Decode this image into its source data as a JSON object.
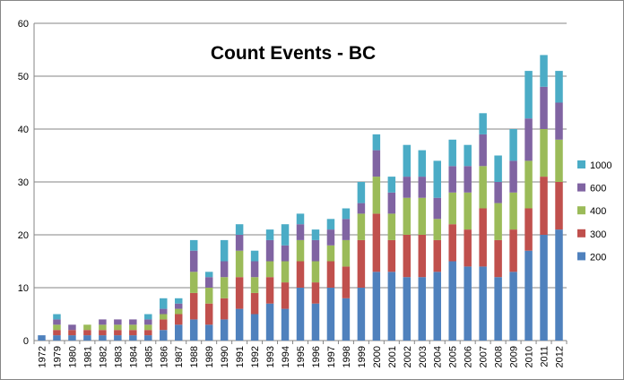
{
  "chart_data": {
    "type": "bar",
    "stacked": true,
    "title": "Count Events - BC",
    "xlabel": "",
    "ylabel": "",
    "ylim": [
      0,
      60
    ],
    "yticks": [
      0,
      10,
      20,
      30,
      40,
      50,
      60
    ],
    "grid": "horizontal",
    "legend_position": "right",
    "categories": [
      "1972",
      "1979",
      "1980",
      "1981",
      "1982",
      "1983",
      "1984",
      "1985",
      "1986",
      "1987",
      "1988",
      "1989",
      "1990",
      "1991",
      "1992",
      "1993",
      "1994",
      "1995",
      "1996",
      "1997",
      "1998",
      "1999",
      "2000",
      "2001",
      "2002",
      "2003",
      "2004",
      "2005",
      "2006",
      "2007",
      "2008",
      "2009",
      "2010",
      "2011",
      "2012"
    ],
    "series": [
      {
        "name": "200",
        "color": "#4F81BD",
        "values": [
          1,
          1,
          1,
          1,
          1,
          1,
          1,
          1,
          2,
          3,
          4,
          3,
          4,
          6,
          5,
          7,
          6,
          10,
          7,
          10,
          8,
          10,
          13,
          13,
          12,
          12,
          13,
          15,
          14,
          14,
          12,
          13,
          17,
          20,
          21
        ]
      },
      {
        "name": "300",
        "color": "#C0504D",
        "values": [
          0,
          1,
          1,
          1,
          1,
          1,
          1,
          1,
          2,
          2,
          5,
          4,
          4,
          6,
          4,
          5,
          5,
          5,
          4,
          5,
          6,
          9,
          11,
          6,
          8,
          8,
          6,
          7,
          7,
          11,
          7,
          8,
          8,
          11,
          9
        ]
      },
      {
        "name": "400",
        "color": "#9BBB59",
        "values": [
          0,
          1,
          0,
          1,
          1,
          1,
          1,
          1,
          1,
          1,
          4,
          3,
          4,
          5,
          3,
          3,
          4,
          4,
          4,
          3,
          5,
          5,
          7,
          5,
          7,
          7,
          4,
          6,
          7,
          8,
          7,
          7,
          9,
          9,
          8
        ]
      },
      {
        "name": "600",
        "color": "#8064A2",
        "values": [
          0,
          1,
          1,
          0,
          1,
          1,
          1,
          1,
          1,
          1,
          4,
          2,
          3,
          3,
          3,
          4,
          3,
          3,
          4,
          3,
          4,
          2,
          5,
          4,
          4,
          4,
          4,
          5,
          5,
          6,
          4,
          6,
          8,
          8,
          7
        ]
      },
      {
        "name": "1000",
        "color": "#4BACC6",
        "values": [
          0,
          1,
          0,
          0,
          0,
          0,
          0,
          1,
          2,
          1,
          2,
          1,
          4,
          2,
          2,
          2,
          4,
          2,
          2,
          2,
          2,
          4,
          3,
          3,
          6,
          5,
          7,
          5,
          4,
          4,
          5,
          6,
          9,
          6,
          6
        ]
      }
    ]
  }
}
